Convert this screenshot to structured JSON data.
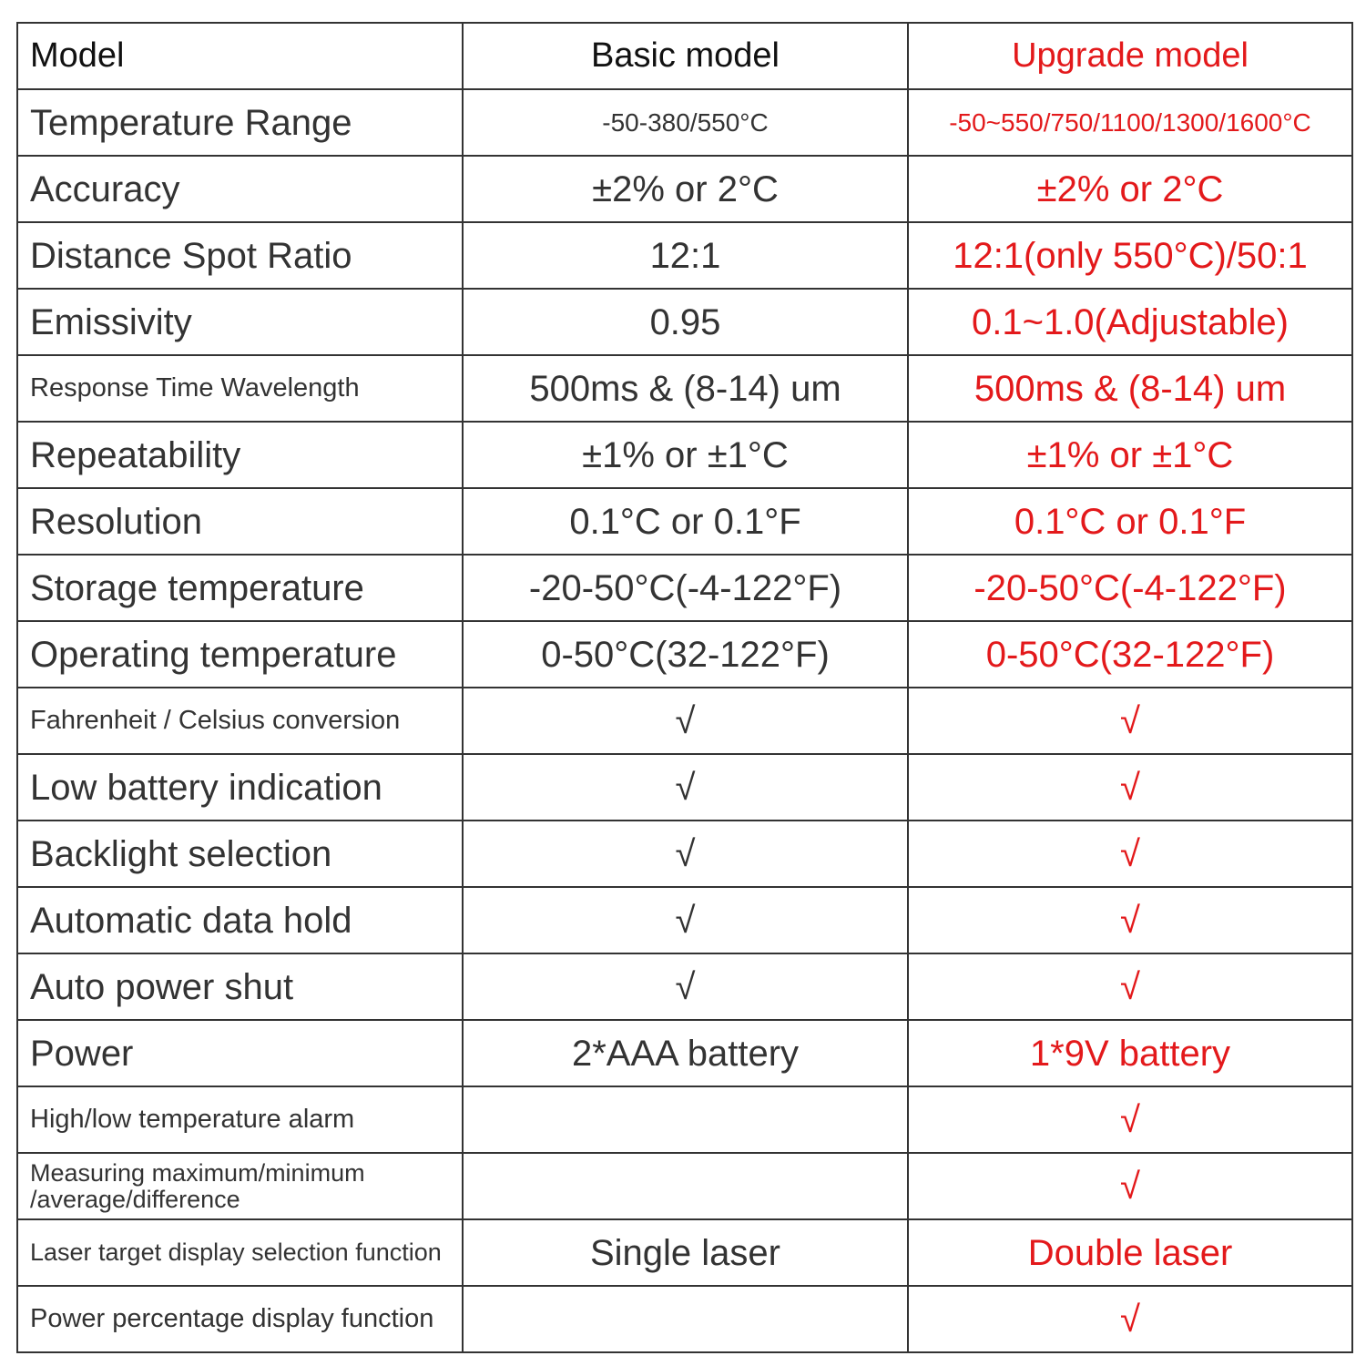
{
  "table": {
    "header": [
      "Model",
      "Basic model",
      "Upgrade model"
    ],
    "rows": [
      [
        "Temperature Range",
        "-50-380/550°C",
        "-50~550/750/1100/1300/1600°C"
      ],
      [
        "Accuracy",
        "±2% or 2°C",
        "±2% or  2°C"
      ],
      [
        "Distance Spot Ratio",
        "12:1",
        "12:1(only 550°C)/50:1"
      ],
      [
        "Emissivity",
        "0.95",
        "0.1~1.0(Adjustable)"
      ],
      [
        "Response Time Wavelength",
        "500ms & (8-14) um",
        "500ms & (8-14) um"
      ],
      [
        "Repeatability",
        "±1% or ±1°C",
        "±1% or ±1°C"
      ],
      [
        "Resolution",
        "0.1°C or 0.1°F",
        "0.1°C or 0.1°F"
      ],
      [
        "Storage temperature",
        "-20-50°C(-4-122°F)",
        "-20-50°C(-4-122°F)"
      ],
      [
        "Operating temperature",
        "0-50°C(32-122°F)",
        "0-50°C(32-122°F)"
      ],
      [
        "Fahrenheit / Celsius conversion",
        "√",
        "√"
      ],
      [
        "Low battery indication",
        "√",
        "√"
      ],
      [
        "Backlight selection",
        "√",
        "√"
      ],
      [
        "Automatic data hold",
        "√",
        "√"
      ],
      [
        "Auto power shut",
        "√",
        "√"
      ],
      [
        "Power",
        "2*AAA battery",
        "1*9V battery"
      ],
      [
        "High/low temperature alarm",
        null,
        "√"
      ],
      [
        "Measuring maximum/minimum\n/average/difference",
        null,
        "√"
      ],
      [
        "Laser target display selection function",
        "Single laser",
        "Double laser"
      ],
      [
        "Power percentage display function",
        null,
        "√"
      ]
    ]
  }
}
